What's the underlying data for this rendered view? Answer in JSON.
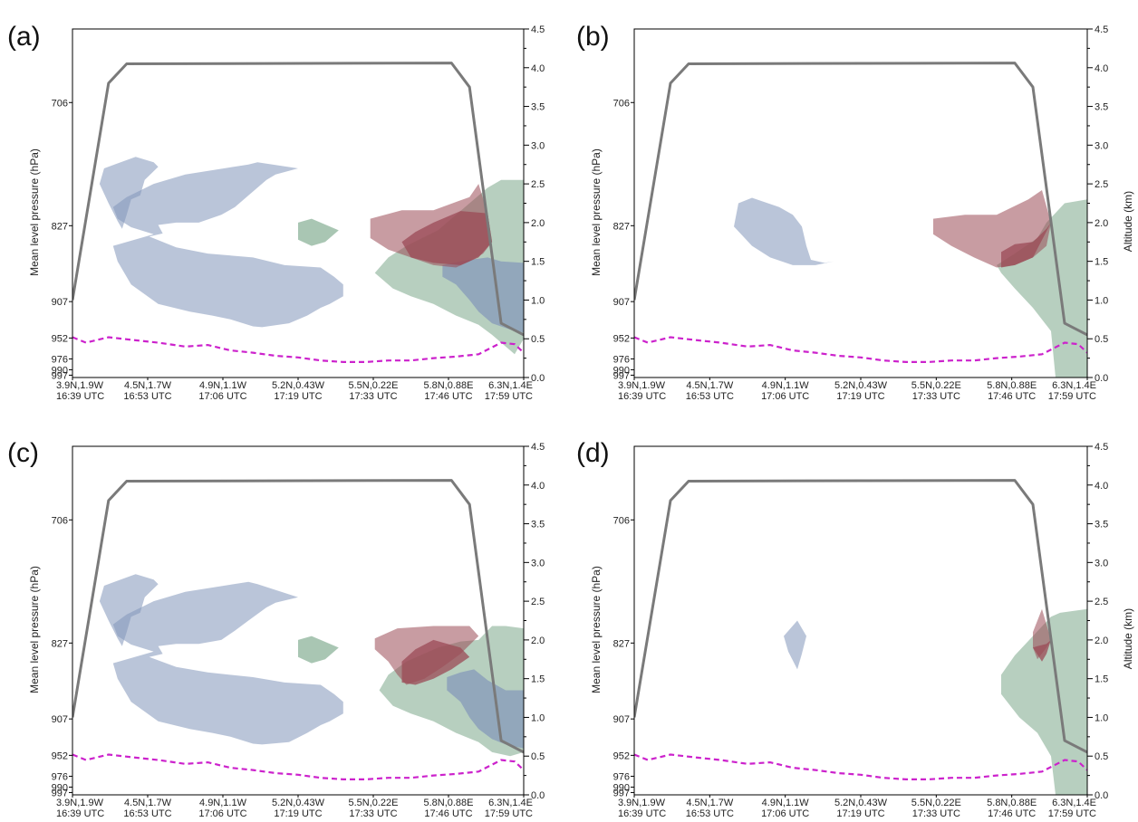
{
  "colors": {
    "blue_region": "#8196b9",
    "red_region": "#9b4a55",
    "green_region": "#7ba88a",
    "flight_track": "#7a7a7a",
    "boundary_layer": "#cc22cc"
  },
  "chart_data": [
    {
      "panel": "(a)",
      "type": "area",
      "ylabel_left": "Mean level pressure (hPa)",
      "ylabel_right": "",
      "left_ticks": [
        "706",
        "827",
        "907",
        "952",
        "976",
        "990",
        "997"
      ],
      "right_ticks": [
        "4.5",
        "4.0",
        "3.5",
        "3.0",
        "2.5",
        "2.0",
        "1.5",
        "1.0",
        "0.5",
        "0.0"
      ],
      "ylim_km": [
        0,
        4.5
      ],
      "x_ticks": [
        {
          "pos": "3.9N,1.9W",
          "time": "16:39 UTC"
        },
        {
          "pos": "4.5N,1.7W",
          "time": "16:53 UTC"
        },
        {
          "pos": "4.9N,1.1W",
          "time": "17:06 UTC"
        },
        {
          "pos": "5.2N,0.43W",
          "time": "17:19 UTC"
        },
        {
          "pos": "5.5N,0.22E",
          "time": "17:33 UTC"
        },
        {
          "pos": "5.8N,0.88E",
          "time": "17:46 UTC"
        },
        {
          "pos": "6.3N,1.4E",
          "time": "17:59 UTC"
        }
      ],
      "flight_altitude_km": [
        [
          0,
          1.0
        ],
        [
          8,
          3.8
        ],
        [
          12,
          4.05
        ],
        [
          84,
          4.06
        ],
        [
          88,
          3.75
        ],
        [
          95,
          0.7
        ],
        [
          100,
          0.55
        ]
      ],
      "boundary_layer_km": [
        [
          0,
          0.52
        ],
        [
          3,
          0.45
        ],
        [
          8,
          0.52
        ],
        [
          14,
          0.48
        ],
        [
          19,
          0.45
        ],
        [
          25,
          0.4
        ],
        [
          30,
          0.42
        ],
        [
          35,
          0.35
        ],
        [
          40,
          0.32
        ],
        [
          45,
          0.28
        ],
        [
          50,
          0.26
        ],
        [
          55,
          0.22
        ],
        [
          60,
          0.2
        ],
        [
          65,
          0.2
        ],
        [
          70,
          0.22
        ],
        [
          75,
          0.22
        ],
        [
          80,
          0.25
        ],
        [
          85,
          0.27
        ],
        [
          90,
          0.3
        ],
        [
          95,
          0.45
        ],
        [
          98,
          0.43
        ],
        [
          100,
          0.32
        ]
      ]
    },
    {
      "panel": "(b)",
      "type": "area",
      "ylabel_left": "Mean level pressure (hPa)",
      "ylabel_right": "Altitude (km)",
      "left_ticks": [
        "706",
        "827",
        "907",
        "952",
        "976",
        "990",
        "997"
      ],
      "right_ticks": [
        "4.5",
        "4.0",
        "3.5",
        "3.0",
        "2.5",
        "2.0",
        "1.5",
        "1.0",
        "0.5",
        "0.0"
      ],
      "ylim_km": [
        0,
        4.5
      ],
      "x_ticks": [
        {
          "pos": "3.9N,1.9W",
          "time": "16:39 UTC"
        },
        {
          "pos": "4.5N,1.7W",
          "time": "16:53 UTC"
        },
        {
          "pos": "4.9N,1.1W",
          "time": "17:06 UTC"
        },
        {
          "pos": "5.2N,0.43W",
          "time": "17:19 UTC"
        },
        {
          "pos": "5.5N,0.22E",
          "time": "17:33 UTC"
        },
        {
          "pos": "5.8N,0.88E",
          "time": "17:46 UTC"
        },
        {
          "pos": "6.3N,1.4E",
          "time": "17:59 UTC"
        }
      ],
      "flight_altitude_km": [
        [
          0,
          1.0
        ],
        [
          8,
          3.8
        ],
        [
          12,
          4.05
        ],
        [
          84,
          4.06
        ],
        [
          88,
          3.75
        ],
        [
          95,
          0.7
        ],
        [
          100,
          0.55
        ]
      ],
      "boundary_layer_km": [
        [
          0,
          0.52
        ],
        [
          3,
          0.45
        ],
        [
          8,
          0.52
        ],
        [
          14,
          0.48
        ],
        [
          19,
          0.45
        ],
        [
          25,
          0.4
        ],
        [
          30,
          0.42
        ],
        [
          35,
          0.35
        ],
        [
          40,
          0.32
        ],
        [
          45,
          0.28
        ],
        [
          50,
          0.26
        ],
        [
          55,
          0.22
        ],
        [
          60,
          0.2
        ],
        [
          65,
          0.2
        ],
        [
          70,
          0.22
        ],
        [
          75,
          0.22
        ],
        [
          80,
          0.25
        ],
        [
          85,
          0.27
        ],
        [
          90,
          0.3
        ],
        [
          95,
          0.45
        ],
        [
          98,
          0.43
        ],
        [
          100,
          0.32
        ]
      ]
    },
    {
      "panel": "(c)",
      "type": "area",
      "ylabel_left": "Mean level pressure (hPa)",
      "ylabel_right": "",
      "left_ticks": [
        "706",
        "827",
        "907",
        "952",
        "976",
        "990",
        "997"
      ],
      "right_ticks": [
        "4.5",
        "4.0",
        "3.5",
        "3.0",
        "2.5",
        "2.0",
        "1.5",
        "1.0",
        "0.5",
        "0.0"
      ],
      "ylim_km": [
        0,
        4.5
      ],
      "x_ticks": [
        {
          "pos": "3.9N,1.9W",
          "time": "16:39 UTC"
        },
        {
          "pos": "4.5N,1.7W",
          "time": "16:53 UTC"
        },
        {
          "pos": "4.9N,1.1W",
          "time": "17:06 UTC"
        },
        {
          "pos": "5.2N,0.43W",
          "time": "17:19 UTC"
        },
        {
          "pos": "5.5N,0.22E",
          "time": "17:33 UTC"
        },
        {
          "pos": "5.8N,0.88E",
          "time": "17:46 UTC"
        },
        {
          "pos": "6.3N,1.4E",
          "time": "17:59 UTC"
        }
      ],
      "flight_altitude_km": [
        [
          0,
          1.0
        ],
        [
          8,
          3.8
        ],
        [
          12,
          4.05
        ],
        [
          84,
          4.06
        ],
        [
          88,
          3.75
        ],
        [
          95,
          0.7
        ],
        [
          100,
          0.55
        ]
      ],
      "boundary_layer_km": [
        [
          0,
          0.52
        ],
        [
          3,
          0.45
        ],
        [
          8,
          0.52
        ],
        [
          14,
          0.48
        ],
        [
          19,
          0.45
        ],
        [
          25,
          0.4
        ],
        [
          30,
          0.42
        ],
        [
          35,
          0.35
        ],
        [
          40,
          0.32
        ],
        [
          45,
          0.28
        ],
        [
          50,
          0.26
        ],
        [
          55,
          0.22
        ],
        [
          60,
          0.2
        ],
        [
          65,
          0.2
        ],
        [
          70,
          0.22
        ],
        [
          75,
          0.22
        ],
        [
          80,
          0.25
        ],
        [
          85,
          0.27
        ],
        [
          90,
          0.3
        ],
        [
          95,
          0.45
        ],
        [
          98,
          0.43
        ],
        [
          100,
          0.32
        ]
      ]
    },
    {
      "panel": "(d)",
      "type": "area",
      "ylabel_left": "Mean level pressure (hPa)",
      "ylabel_right": "Altitude (km)",
      "left_ticks": [
        "706",
        "827",
        "907",
        "952",
        "976",
        "990",
        "997"
      ],
      "right_ticks": [
        "4.5",
        "4.0",
        "3.5",
        "3.0",
        "2.5",
        "2.0",
        "1.5",
        "1.0",
        "0.5",
        "0.0"
      ],
      "ylim_km": [
        0,
        4.5
      ],
      "x_ticks": [
        {
          "pos": "3.9N,1.9W",
          "time": "16:39 UTC"
        },
        {
          "pos": "4.5N,1.7W",
          "time": "16:53 UTC"
        },
        {
          "pos": "4.9N,1.1W",
          "time": "17:06 UTC"
        },
        {
          "pos": "5.2N,0.43W",
          "time": "17:19 UTC"
        },
        {
          "pos": "5.5N,0.22E",
          "time": "17:33 UTC"
        },
        {
          "pos": "5.8N,0.88E",
          "time": "17:46 UTC"
        },
        {
          "pos": "6.3N,1.4E",
          "time": "17:59 UTC"
        }
      ],
      "flight_altitude_km": [
        [
          0,
          1.0
        ],
        [
          8,
          3.8
        ],
        [
          12,
          4.05
        ],
        [
          84,
          4.06
        ],
        [
          88,
          3.75
        ],
        [
          95,
          0.7
        ],
        [
          100,
          0.55
        ]
      ],
      "boundary_layer_km": [
        [
          0,
          0.52
        ],
        [
          3,
          0.45
        ],
        [
          8,
          0.52
        ],
        [
          14,
          0.48
        ],
        [
          19,
          0.45
        ],
        [
          25,
          0.4
        ],
        [
          30,
          0.42
        ],
        [
          35,
          0.35
        ],
        [
          40,
          0.32
        ],
        [
          45,
          0.28
        ],
        [
          50,
          0.26
        ],
        [
          55,
          0.22
        ],
        [
          60,
          0.2
        ],
        [
          65,
          0.2
        ],
        [
          70,
          0.22
        ],
        [
          75,
          0.22
        ],
        [
          80,
          0.25
        ],
        [
          85,
          0.27
        ],
        [
          90,
          0.3
        ],
        [
          95,
          0.45
        ],
        [
          98,
          0.43
        ],
        [
          100,
          0.32
        ]
      ]
    }
  ]
}
